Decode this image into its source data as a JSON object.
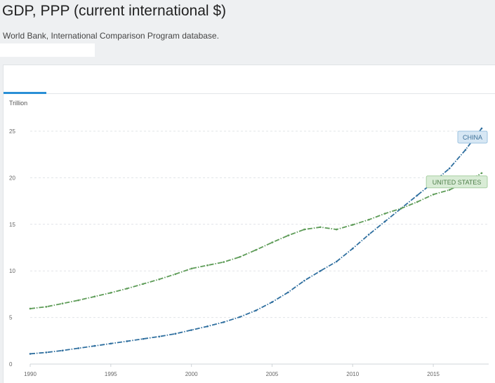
{
  "header": {
    "title": "GDP, PPP (current international $)",
    "source": "World Bank, International Comparison Program database."
  },
  "chart_data": {
    "type": "line",
    "title": "GDP, PPP (current international $)",
    "ylabel": "Trillion",
    "xlim": [
      1990,
      2018
    ],
    "ylim": [
      0,
      25
    ],
    "x_ticks": [
      1990,
      1995,
      2000,
      2005,
      2010,
      2015
    ],
    "y_ticks": [
      0,
      5,
      10,
      15,
      20,
      25
    ],
    "grid": true,
    "x": [
      1990,
      1991,
      1992,
      1993,
      1994,
      1995,
      1996,
      1997,
      1998,
      1999,
      2000,
      2001,
      2002,
      2003,
      2004,
      2005,
      2006,
      2007,
      2008,
      2009,
      2010,
      2011,
      2012,
      2013,
      2014,
      2015,
      2016,
      2017,
      2018
    ],
    "series": [
      {
        "name": "CHINA",
        "color": "#2f6f9f",
        "label_bg": "#d7e7f4",
        "label_border": "#9cc3e0",
        "values": [
          1.1,
          1.25,
          1.45,
          1.7,
          1.95,
          2.2,
          2.45,
          2.7,
          2.95,
          3.25,
          3.65,
          4.05,
          4.5,
          5.05,
          5.75,
          6.65,
          7.7,
          8.95,
          10.0,
          11.0,
          12.4,
          13.9,
          15.3,
          16.7,
          18.1,
          19.5,
          21.0,
          23.0,
          25.3
        ]
      },
      {
        "name": "UNITED STATES",
        "color": "#5e9c58",
        "label_bg": "#d9ecd6",
        "label_border": "#a8cfa2",
        "values": [
          5.95,
          6.15,
          6.5,
          6.85,
          7.25,
          7.65,
          8.1,
          8.6,
          9.1,
          9.65,
          10.25,
          10.6,
          10.95,
          11.5,
          12.25,
          13.05,
          13.8,
          14.45,
          14.7,
          14.45,
          14.95,
          15.5,
          16.15,
          16.7,
          17.4,
          18.2,
          18.7,
          19.5,
          20.5
        ]
      }
    ]
  }
}
